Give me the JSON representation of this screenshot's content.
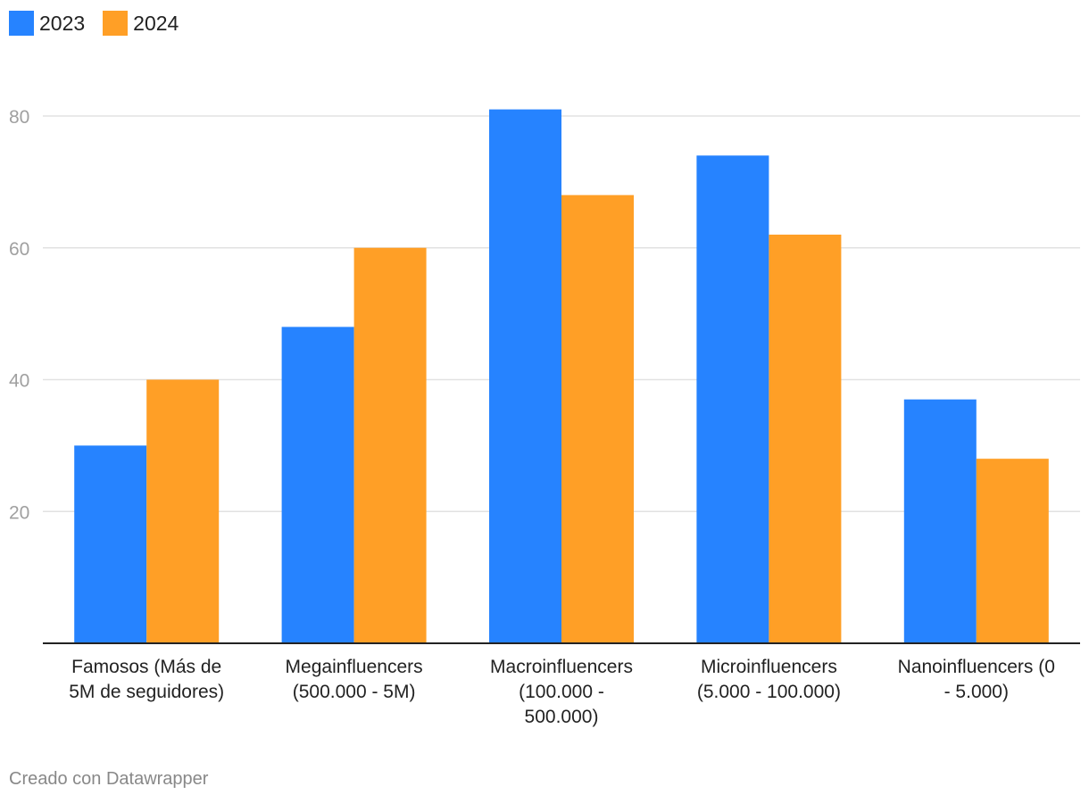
{
  "chart_data": {
    "type": "bar",
    "categories": [
      [
        "Famosos (Más de",
        "5M de seguidores)"
      ],
      [
        "Megainfluencers",
        "(500.000 - 5M)"
      ],
      [
        "Macroinfluencers",
        "(100.000 -",
        "500.000)"
      ],
      [
        "Microinfluencers",
        "(5.000 - 100.000)"
      ],
      [
        "Nanoinfluencers (0",
        "- 5.000)"
      ]
    ],
    "series": [
      {
        "name": "2023",
        "color": "#2683ff",
        "values": [
          30,
          48,
          81,
          74,
          37
        ]
      },
      {
        "name": "2024",
        "color": "#ff9f26",
        "values": [
          40,
          60,
          68,
          62,
          28
        ]
      }
    ],
    "yticks": [
      "20",
      "40",
      "60",
      "80"
    ],
    "ylim": [
      0,
      80
    ],
    "title": "",
    "xlabel": "",
    "ylabel": ""
  },
  "footer": "Creado con Datawrapper"
}
